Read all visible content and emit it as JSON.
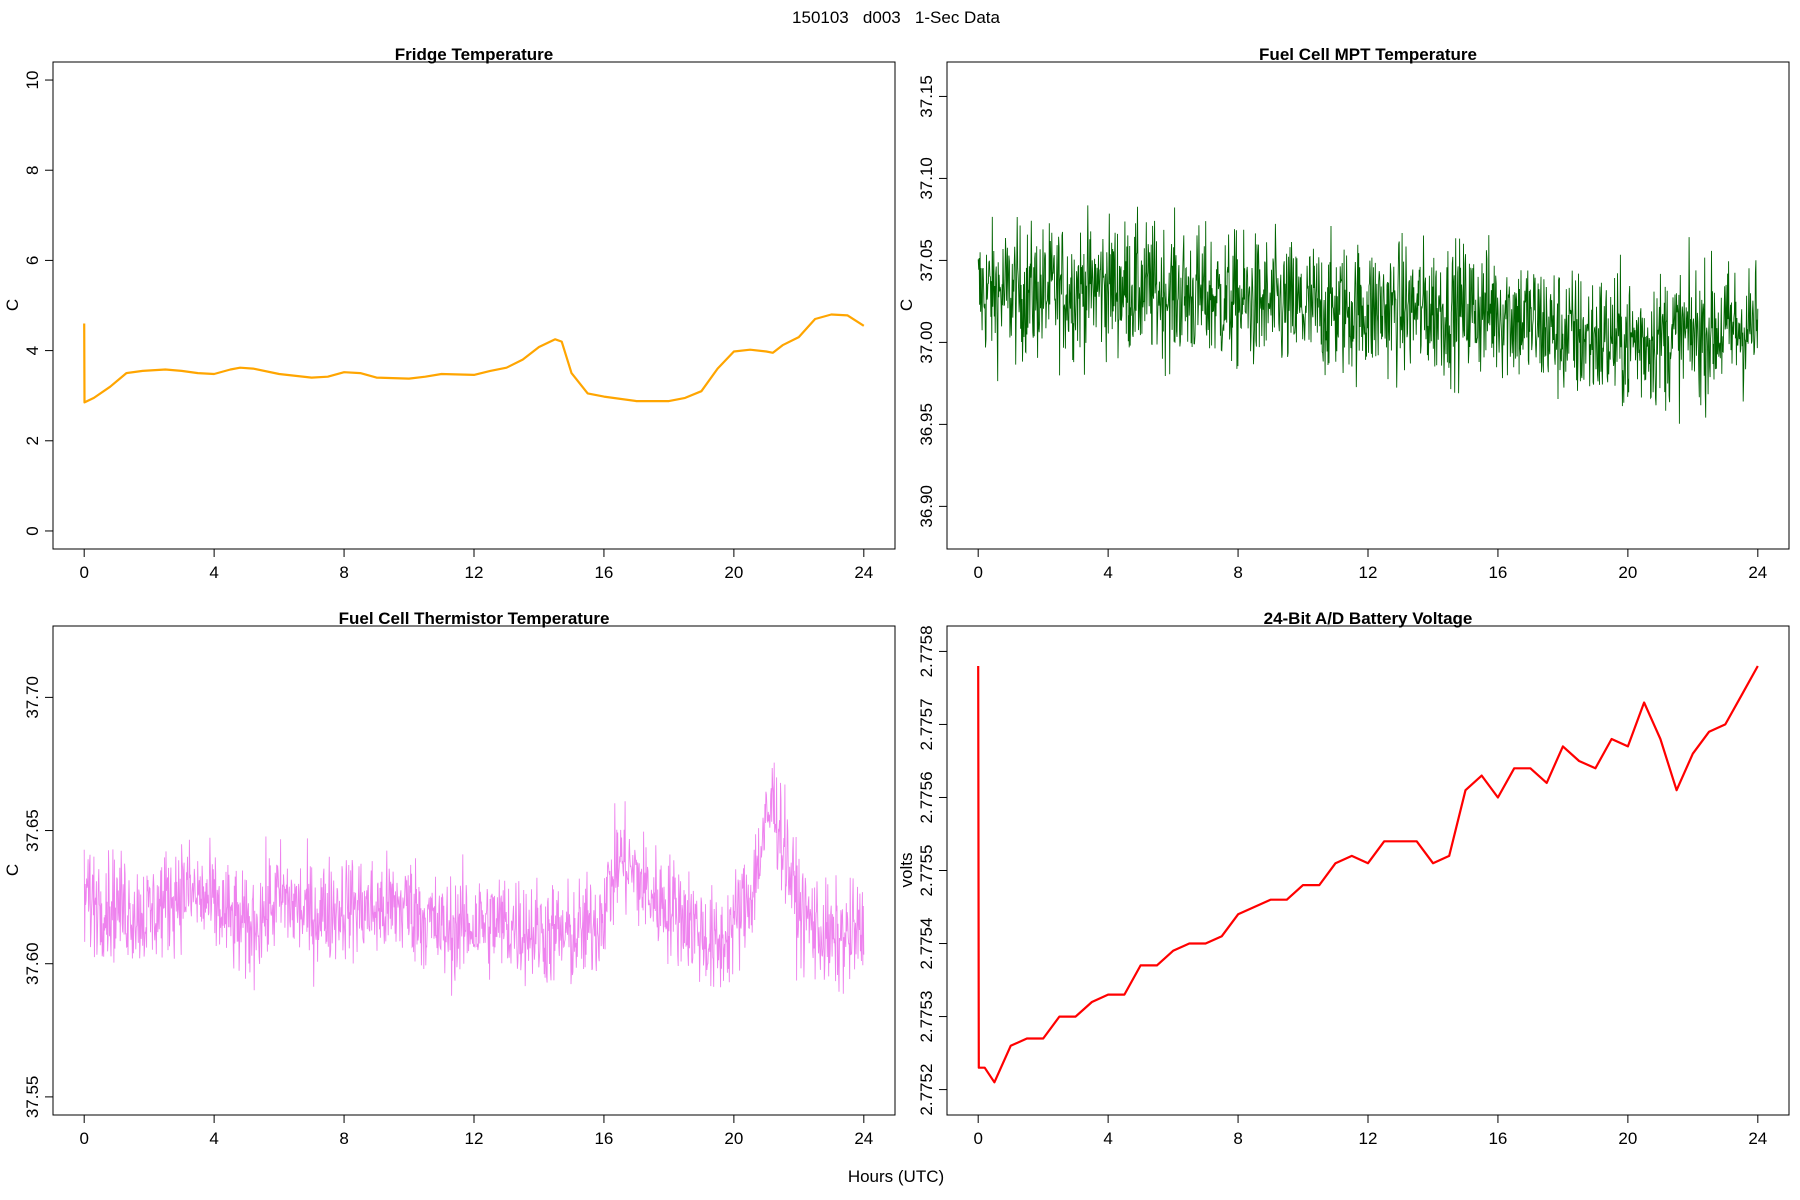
{
  "figure": {
    "title": "150103   d003   1-Sec Data",
    "xlabel": "Hours (UTC)"
  },
  "chart_data": [
    {
      "type": "line",
      "title": "Fridge Temperature",
      "xlabel": "",
      "ylabel": "C",
      "color": "#ffa500",
      "xlim": [
        0,
        24
      ],
      "ylim": [
        0,
        10
      ],
      "xticks": [
        0,
        4,
        8,
        12,
        16,
        20,
        24
      ],
      "yticks": [
        0,
        2,
        4,
        6,
        8,
        10
      ],
      "tick_labels_x": [
        "0",
        "4",
        "8",
        "12",
        "16",
        "20",
        "24"
      ],
      "tick_labels_y": [
        "0",
        "2",
        "4",
        "6",
        "8",
        "10"
      ],
      "noise": 0,
      "x": [
        0,
        0.01,
        0.3,
        0.8,
        1.3,
        1.8,
        2.5,
        3.0,
        3.5,
        4.0,
        4.5,
        4.8,
        5.2,
        6.0,
        7.0,
        7.5,
        8.0,
        8.5,
        9.0,
        10.0,
        10.5,
        11.0,
        12.0,
        12.5,
        13.0,
        13.5,
        14.0,
        14.5,
        14.7,
        15.0,
        15.5,
        16.0,
        17.0,
        18.0,
        18.5,
        19.0,
        19.5,
        20.0,
        20.5,
        21.0,
        21.2,
        21.5,
        22.0,
        22.5,
        23.0,
        23.5,
        24.0
      ],
      "y": [
        4.6,
        2.85,
        2.95,
        3.2,
        3.5,
        3.55,
        3.58,
        3.55,
        3.5,
        3.48,
        3.58,
        3.62,
        3.6,
        3.48,
        3.4,
        3.42,
        3.52,
        3.5,
        3.4,
        3.38,
        3.42,
        3.48,
        3.46,
        3.55,
        3.62,
        3.8,
        4.08,
        4.25,
        4.2,
        3.5,
        3.05,
        2.98,
        2.88,
        2.88,
        2.95,
        3.1,
        3.6,
        3.98,
        4.02,
        3.98,
        3.95,
        4.12,
        4.3,
        4.7,
        4.8,
        4.78,
        4.55
      ]
    },
    {
      "type": "line",
      "title": "Fuel Cell MPT Temperature",
      "xlabel": "",
      "ylabel": "C",
      "color": "#006400",
      "xlim": [
        0,
        24
      ],
      "ylim": [
        36.885,
        37.16
      ],
      "xticks": [
        0,
        4,
        8,
        12,
        16,
        20,
        24
      ],
      "yticks": [
        36.9,
        36.95,
        37.0,
        37.05,
        37.1,
        37.15
      ],
      "tick_labels_x": [
        "0",
        "4",
        "8",
        "12",
        "16",
        "20",
        "24"
      ],
      "tick_labels_y": [
        "36.90",
        "36.95",
        "37.00",
        "37.05",
        "37.10",
        "37.15"
      ],
      "noise": 0.045,
      "x": [
        0,
        2,
        4,
        6,
        8,
        10,
        12,
        14,
        16,
        18,
        20,
        22,
        24
      ],
      "y": [
        37.03,
        37.03,
        37.035,
        37.03,
        37.025,
        37.02,
        37.02,
        37.02,
        37.02,
        37.005,
        37.0,
        37.005,
        37.01
      ]
    },
    {
      "type": "line",
      "title": "Fuel Cell Thermistor Temperature",
      "xlabel": "",
      "ylabel": "C",
      "color": "#ee82ee",
      "xlim": [
        0,
        24
      ],
      "ylim": [
        37.55,
        37.72
      ],
      "xticks": [
        0,
        4,
        8,
        12,
        16,
        20,
        24
      ],
      "yticks": [
        37.55,
        37.6,
        37.65,
        37.7
      ],
      "tick_labels_x": [
        "0",
        "4",
        "8",
        "12",
        "16",
        "20",
        "24"
      ],
      "tick_labels_y": [
        "37.55",
        "37.60",
        "37.65",
        "37.70"
      ],
      "noise": 0.022,
      "x": [
        0,
        1,
        2,
        3,
        4,
        5,
        6,
        7,
        8,
        9,
        10,
        11,
        12,
        13,
        14,
        15,
        15.8,
        16.5,
        17.5,
        18.5,
        19.5,
        20.5,
        21.2,
        22.0,
        23.0,
        24.0
      ],
      "y": [
        37.625,
        37.622,
        37.618,
        37.628,
        37.622,
        37.612,
        37.625,
        37.618,
        37.622,
        37.62,
        37.622,
        37.612,
        37.615,
        37.615,
        37.612,
        37.61,
        37.615,
        37.64,
        37.625,
        37.618,
        37.605,
        37.625,
        37.662,
        37.62,
        37.608,
        37.612
      ]
    },
    {
      "type": "line",
      "title": "24-Bit A/D Battery Voltage",
      "xlabel": "",
      "ylabel": "volts",
      "color": "#ff0000",
      "xlim": [
        0,
        24
      ],
      "ylim": [
        2.77519,
        2.77581
      ],
      "xticks": [
        0,
        4,
        8,
        12,
        16,
        20,
        24
      ],
      "yticks": [
        2.7752,
        2.7753,
        2.7754,
        2.7755,
        2.7756,
        2.7757,
        2.7758
      ],
      "tick_labels_x": [
        "0",
        "4",
        "8",
        "12",
        "16",
        "20",
        "24"
      ],
      "tick_labels_y": [
        "2.7752",
        "2.7753",
        "2.7754",
        "2.7755",
        "2.7756",
        "2.7757",
        "2.7758"
      ],
      "noise": 0,
      "x": [
        0,
        0.02,
        0.2,
        0.5,
        1.0,
        1.5,
        2.0,
        2.5,
        3.0,
        3.5,
        4.0,
        4.5,
        5.0,
        5.5,
        6.0,
        6.5,
        7.0,
        7.5,
        8.0,
        8.5,
        9.0,
        9.5,
        10.0,
        10.5,
        11.0,
        11.5,
        12.0,
        12.5,
        13.0,
        13.5,
        14.0,
        14.5,
        15.0,
        15.5,
        16.0,
        16.5,
        17.0,
        17.5,
        18.0,
        18.5,
        19.0,
        19.5,
        20.0,
        20.5,
        21.0,
        21.5,
        22.0,
        22.5,
        23.0,
        23.5,
        24.0
      ],
      "y": [
        2.77578,
        2.77523,
        2.77523,
        2.77521,
        2.77526,
        2.77527,
        2.77527,
        2.7753,
        2.7753,
        2.77532,
        2.77533,
        2.77533,
        2.77537,
        2.77537,
        2.77539,
        2.7754,
        2.7754,
        2.77541,
        2.77544,
        2.77545,
        2.77546,
        2.77546,
        2.77548,
        2.77548,
        2.77551,
        2.77552,
        2.77551,
        2.77554,
        2.77554,
        2.77554,
        2.77551,
        2.77552,
        2.77561,
        2.77563,
        2.7756,
        2.77564,
        2.77564,
        2.77562,
        2.77567,
        2.77565,
        2.77564,
        2.77568,
        2.77567,
        2.77573,
        2.77568,
        2.77561,
        2.77566,
        2.77569,
        2.7757,
        2.77574,
        2.77578
      ]
    }
  ]
}
